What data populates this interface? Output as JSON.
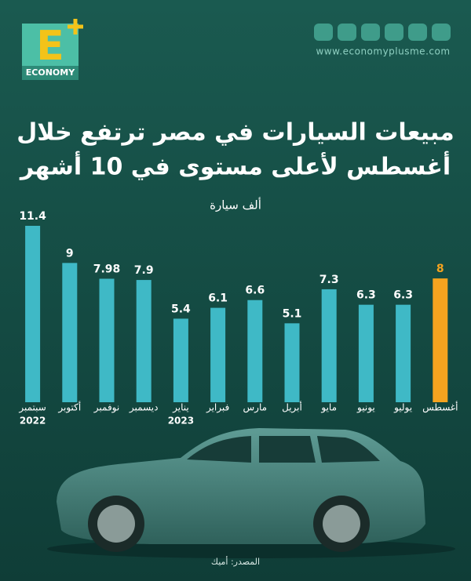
{
  "header": {
    "logo_letter": "E",
    "logo_text": "ECONOMY",
    "website": "www.economyplusme.com"
  },
  "chart_data": {
    "type": "bar",
    "title_lines": [
      "مبيعات السيارات في مصر ترتفع خلال",
      "أغسطس لأعلى مستوى في 10 أشهر"
    ],
    "subtitle": "ألف سيارة",
    "categories": [
      "سبتمبر",
      "أكتوبر",
      "نوفمبر",
      "ديسمبر",
      "يناير",
      "فبراير",
      "مارس",
      "أبريل",
      "مايو",
      "يونيو",
      "يوليو",
      "أغسطس"
    ],
    "year_labels": [
      "2022",
      null,
      null,
      null,
      "2023",
      null,
      null,
      null,
      null,
      null,
      null,
      null
    ],
    "values": [
      11.4,
      9,
      7.98,
      7.9,
      5.4,
      6.1,
      6.6,
      5.1,
      7.3,
      6.3,
      6.3,
      8
    ],
    "colors": [
      "#3fb9c6",
      "#3fb9c6",
      "#3fb9c6",
      "#3fb9c6",
      "#3fb9c6",
      "#3fb9c6",
      "#3fb9c6",
      "#3fb9c6",
      "#3fb9c6",
      "#3fb9c6",
      "#3fb9c6",
      "#f5a31f"
    ],
    "value_label_colors": [
      "#ffffff",
      "#ffffff",
      "#ffffff",
      "#ffffff",
      "#ffffff",
      "#ffffff",
      "#ffffff",
      "#ffffff",
      "#ffffff",
      "#ffffff",
      "#ffffff",
      "#f5a31f"
    ],
    "source": "المصدر: أميك"
  }
}
